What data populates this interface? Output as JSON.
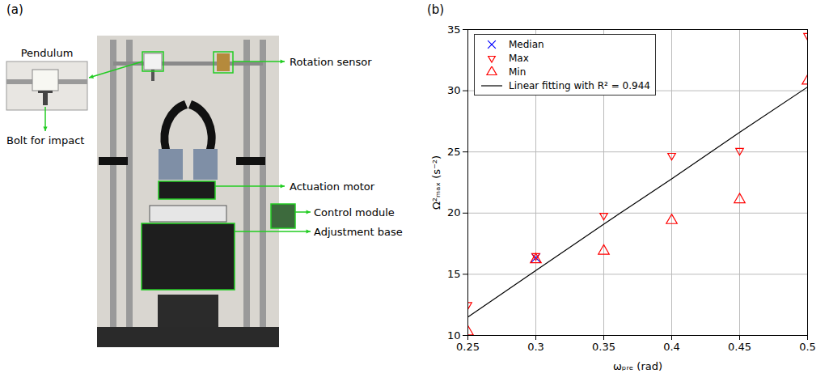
{
  "panel_a": {
    "letter": "(a)",
    "inset_title": "Pendulum",
    "labels": [
      "Bolt for impact",
      "Rotation sensor",
      "Actuation motor",
      "Control module",
      "Adjustment base"
    ]
  },
  "chart_data": {
    "letter": "(b)",
    "type": "scatter",
    "x_label": "ωₚᵣₑ (rad)",
    "y_label": "Ω²ₘₐₓ (s⁻²)",
    "x": [
      0.25,
      0.3,
      0.35,
      0.4,
      0.45,
      0.5
    ],
    "series": [
      {
        "name": "Median",
        "color": "#0000ff",
        "marker": "x",
        "values": [
          null,
          16.35,
          null,
          null,
          null,
          null
        ]
      },
      {
        "name": "Max",
        "color": "#ff0000",
        "marker": "triangle-down",
        "values": [
          12.5,
          16.5,
          19.8,
          24.7,
          25.1,
          34.5
        ]
      },
      {
        "name": "Min",
        "color": "#ff0000",
        "marker": "triangle-up",
        "values": [
          10.3,
          16.2,
          16.9,
          19.4,
          21.1,
          30.8
        ]
      },
      {
        "name": "Linear fitting with R² = 0.944",
        "color": "#000000",
        "type": "line",
        "line_style": "solid",
        "values": [
          11.5,
          15.3,
          19.1,
          22.8,
          26.6,
          30.3
        ]
      }
    ],
    "xlim": [
      0.25,
      0.5
    ],
    "xticks": [
      0.25,
      0.3,
      0.35,
      0.4,
      0.45,
      0.5
    ],
    "ylim": [
      10,
      35
    ],
    "yticks": [
      10,
      15,
      20,
      25,
      30,
      35
    ],
    "grid": true,
    "legend": "upper left"
  }
}
